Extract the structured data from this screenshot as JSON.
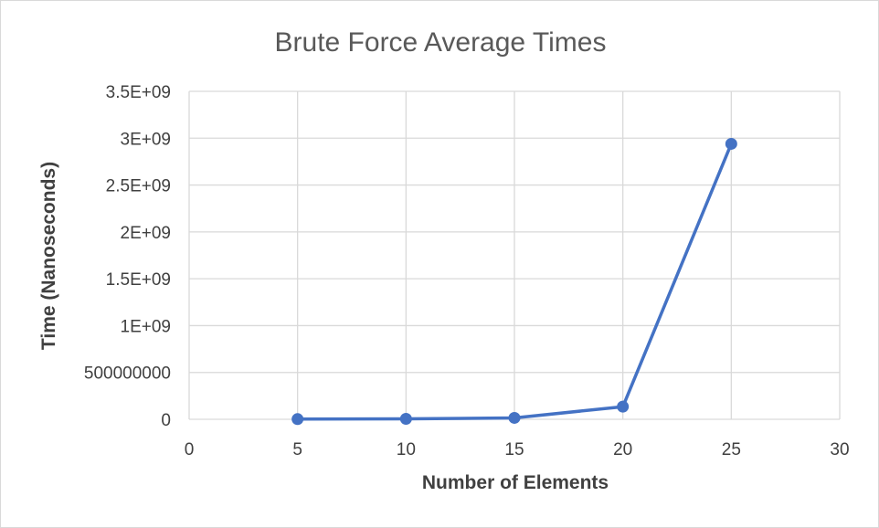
{
  "chart_data": {
    "type": "scatter",
    "title": "Brute Force Average Times",
    "xlabel": "Number of Elements",
    "ylabel": "Time (Nanoseconds)",
    "xlim": [
      0,
      30
    ],
    "ylim": [
      0,
      3500000000
    ],
    "x_ticks": [
      0,
      5,
      10,
      15,
      20,
      25,
      30
    ],
    "x_tick_labels": [
      "0",
      "5",
      "10",
      "15",
      "20",
      "25",
      "30"
    ],
    "y_ticks": [
      0,
      500000000,
      1000000000,
      1500000000,
      2000000000,
      2500000000,
      3000000000,
      3500000000
    ],
    "y_tick_labels": [
      "0",
      "500000000",
      "1E+09",
      "1.5E+09",
      "2E+09",
      "2.5E+09",
      "3E+09",
      "3.5E+09"
    ],
    "grid": true,
    "series": [
      {
        "x": [
          5,
          10,
          15,
          20,
          25
        ],
        "y": [
          2000000,
          5000000,
          15000000,
          135000000,
          2940000000
        ]
      }
    ],
    "colors": {
      "series": "#4472c4",
      "grid": "#d9d9d9"
    }
  }
}
